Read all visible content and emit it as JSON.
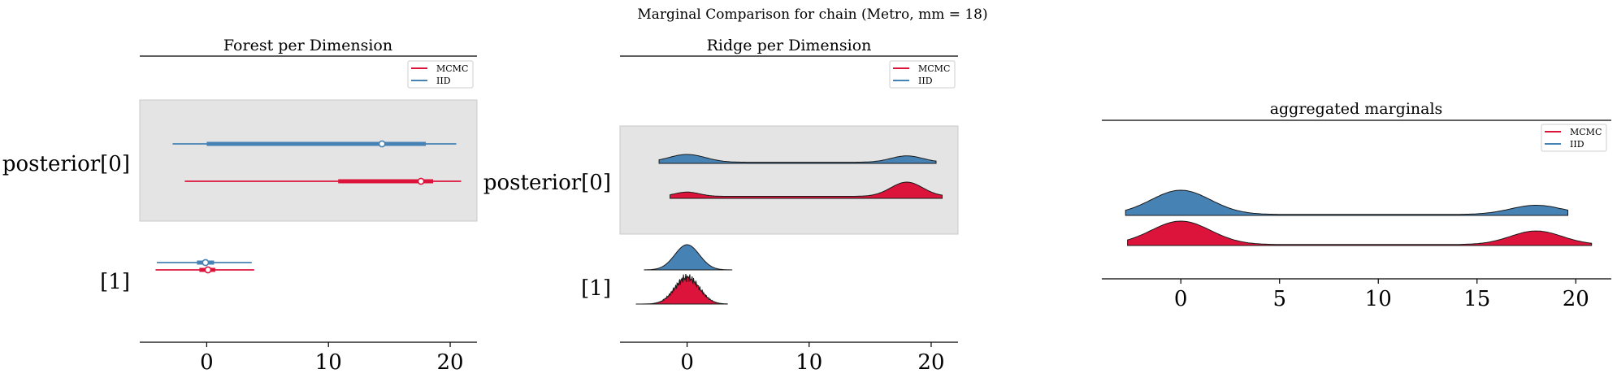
{
  "figure_title": "Marginal Comparison for chain (Metro, mm = 18)",
  "colors": {
    "mcmc": "#dc143c",
    "iid": "#4682b4",
    "shade": "#e4e4e4"
  },
  "legend": [
    "MCMC",
    "IID"
  ],
  "chart_data": [
    {
      "type": "forest",
      "title": "Forest per Dimension",
      "rows": [
        "posterior[0]",
        "[1]"
      ],
      "xlim": [
        -5.5,
        22.2
      ],
      "xticks": [
        0,
        10,
        20
      ],
      "legend_position": "top-right",
      "shaded_rows": [
        "posterior[0]"
      ],
      "series": [
        {
          "name": "MCMC",
          "row": "posterior[0]",
          "hdi_94": [
            -1.8,
            20.9
          ],
          "iqr": [
            10.8,
            18.6
          ],
          "median": 17.6
        },
        {
          "name": "IID",
          "row": "posterior[0]",
          "hdi_94": [
            -2.8,
            20.5
          ],
          "iqr": [
            0.0,
            18.0
          ],
          "median": 14.4
        },
        {
          "name": "MCMC",
          "row": "[1]",
          "hdi_94": [
            -4.2,
            3.9
          ],
          "iqr": [
            -0.6,
            0.7
          ],
          "median": 0.1
        },
        {
          "name": "IID",
          "row": "[1]",
          "hdi_94": [
            -4.1,
            3.7
          ],
          "iqr": [
            -0.8,
            0.6
          ],
          "median": -0.1
        }
      ]
    },
    {
      "type": "ridgeline",
      "title": "Ridge per Dimension",
      "rows": [
        "posterior[0]",
        "[1]"
      ],
      "xlim": [
        -5.5,
        22.2
      ],
      "xticks": [
        0,
        10,
        20
      ],
      "legend_position": "top-right",
      "shaded_rows": [
        "posterior[0]"
      ],
      "series": [
        {
          "name": "IID",
          "row": "posterior[0]",
          "range": [
            -2.3,
            20.4
          ],
          "components": [
            {
              "mean": 0,
              "sd": 1.5,
              "weight": 0.55
            },
            {
              "mean": 18,
              "sd": 1.3,
              "weight": 0.45
            }
          ],
          "baseline": 0.08
        },
        {
          "name": "MCMC",
          "row": "posterior[0]",
          "range": [
            -1.4,
            20.9
          ],
          "components": [
            {
              "mean": 0,
              "sd": 1.0,
              "weight": 0.3
            },
            {
              "mean": 18,
              "sd": 1.3,
              "weight": 1.0
            }
          ],
          "baseline": 0.14
        },
        {
          "name": "IID",
          "row": "[1]",
          "range": [
            -3.5,
            3.7
          ],
          "components": [
            {
              "mean": 0,
              "sd": 1.0,
              "weight": 1.0
            }
          ],
          "baseline": 0.0
        },
        {
          "name": "MCMC",
          "row": "[1]",
          "range": [
            -4.2,
            3.3
          ],
          "components": [
            {
              "mean": 0,
              "sd": 1.0,
              "weight": 1.0
            }
          ],
          "baseline": 0.0,
          "jagged": true
        }
      ]
    },
    {
      "type": "ridgeline",
      "title": "aggregated marginals",
      "xlim": [
        -4,
        21.8
      ],
      "xticks": [
        0,
        5,
        10,
        15,
        20
      ],
      "legend_position": "top-right",
      "series": [
        {
          "name": "IID",
          "range": [
            -2.8,
            19.6
          ],
          "components": [
            {
              "mean": 0,
              "sd": 1.5,
              "weight": 1.0
            },
            {
              "mean": 18,
              "sd": 1.3,
              "weight": 0.38
            }
          ],
          "baseline": 0.04
        },
        {
          "name": "MCMC",
          "range": [
            -2.7,
            20.8
          ],
          "components": [
            {
              "mean": 0,
              "sd": 1.5,
              "weight": 1.0
            },
            {
              "mean": 18,
              "sd": 1.3,
              "weight": 0.58
            }
          ],
          "baseline": 0.04
        }
      ]
    }
  ]
}
